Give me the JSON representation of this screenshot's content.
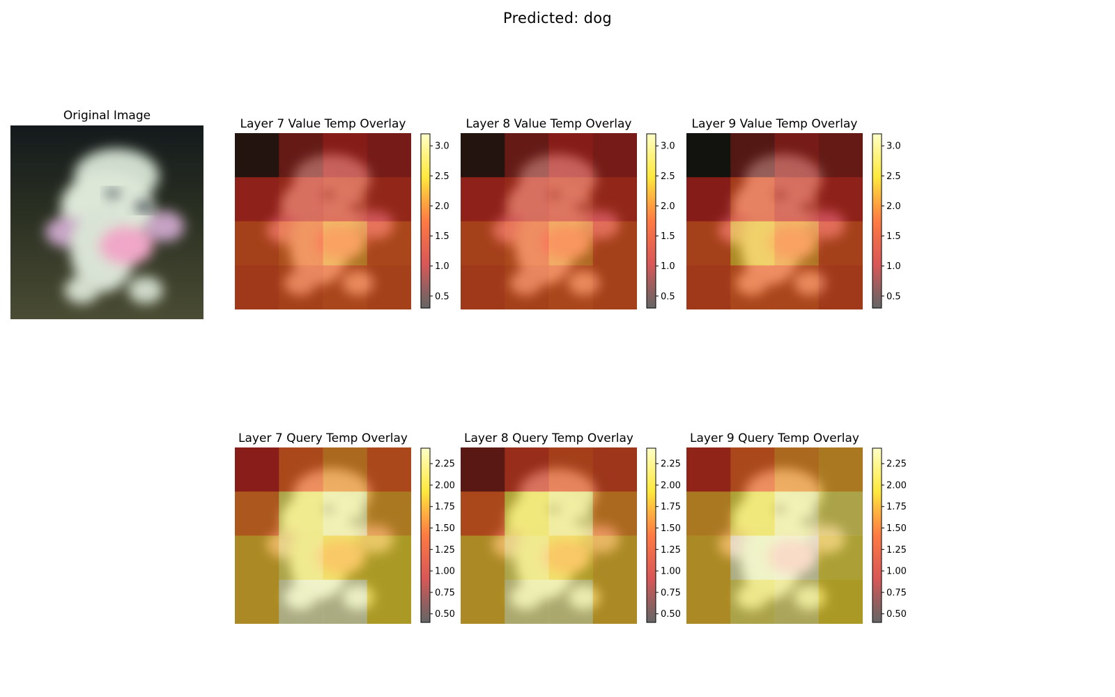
{
  "figure": {
    "title": "Predicted: dog"
  },
  "original": {
    "title": "Original Image"
  },
  "rows": [
    {
      "panels": [
        {
          "title": "Layer 7 Value Temp Overlay",
          "patch_grid": [
            [
              0.4,
              0.8,
              1.0,
              0.9
            ],
            [
              1.1,
              1.2,
              1.3,
              1.2
            ],
            [
              1.6,
              1.8,
              2.1,
              1.7
            ],
            [
              1.5,
              1.6,
              1.7,
              1.6
            ]
          ]
        },
        {
          "title": "Layer 8 Value Temp Overlay",
          "patch_grid": [
            [
              0.4,
              0.8,
              1.0,
              0.9
            ],
            [
              1.1,
              1.2,
              1.3,
              1.2
            ],
            [
              1.6,
              1.7,
              2.0,
              1.6
            ],
            [
              1.5,
              1.6,
              1.7,
              1.6
            ]
          ]
        },
        {
          "title": "Layer 9 Value Temp Overlay",
          "patch_grid": [
            [
              0.3,
              0.7,
              0.9,
              0.8
            ],
            [
              1.0,
              1.5,
              1.2,
              1.1
            ],
            [
              1.6,
              2.3,
              2.1,
              1.6
            ],
            [
              1.5,
              1.7,
              1.7,
              1.5
            ]
          ]
        }
      ],
      "colorbar": {
        "ticks": [
          "0.5",
          "1.0",
          "1.5",
          "2.0",
          "2.5",
          "3.0"
        ],
        "tick_values": [
          0.5,
          1.0,
          1.5,
          2.0,
          2.5,
          3.0
        ],
        "range": [
          0.3,
          3.2
        ]
      }
    },
    {
      "panels": [
        {
          "title": "Layer 7 Query Temp Overlay",
          "patch_grid": [
            [
              0.9,
              1.4,
              1.6,
              1.4
            ],
            [
              1.5,
              2.1,
              2.3,
              1.7
            ],
            [
              1.8,
              2.1,
              1.9,
              1.9
            ],
            [
              1.8,
              2.4,
              2.4,
              1.9
            ]
          ]
        },
        {
          "title": "Layer 8 Query Temp Overlay",
          "patch_grid": [
            [
              0.7,
              1.1,
              1.3,
              1.2
            ],
            [
              1.4,
              2.0,
              2.2,
              1.6
            ],
            [
              1.8,
              2.1,
              1.9,
              1.8
            ],
            [
              1.8,
              2.3,
              2.3,
              1.8
            ]
          ]
        },
        {
          "title": "Layer 9 Query Temp Overlay",
          "patch_grid": [
            [
              1.0,
              1.4,
              1.6,
              1.7
            ],
            [
              1.7,
              2.0,
              2.3,
              2.1
            ],
            [
              1.8,
              2.4,
              2.6,
              2.0
            ],
            [
              1.8,
              2.1,
              2.2,
              1.9
            ]
          ]
        }
      ],
      "colorbar": {
        "ticks": [
          "0.50",
          "0.75",
          "1.00",
          "1.25",
          "1.50",
          "1.75",
          "2.00",
          "2.25"
        ],
        "tick_values": [
          0.5,
          0.75,
          1.0,
          1.25,
          1.5,
          1.75,
          2.0,
          2.25
        ],
        "range": [
          0.4,
          2.43
        ]
      }
    }
  ],
  "colormap": {
    "name": "hot",
    "overlay_alpha": 0.6,
    "stops": [
      "#000000",
      "#c81010",
      "#ff5a14",
      "#ffe628",
      "#ffffc8"
    ]
  }
}
